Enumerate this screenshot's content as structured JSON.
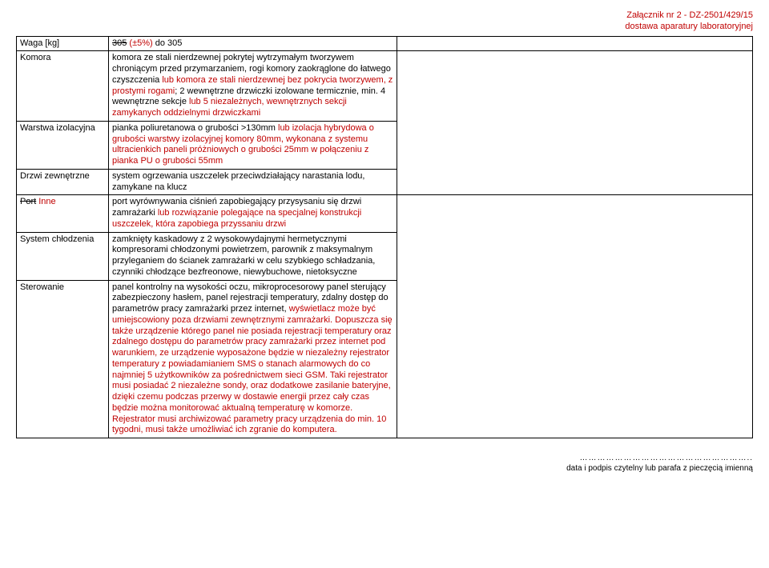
{
  "header": {
    "line1": "Załącznik nr 2 - DZ-2501/429/15",
    "line2": "dostawa aparatury laboratoryjnej"
  },
  "rows": [
    {
      "label_html": "Waga [kg]",
      "desc_html": "<span class='strike'>305</span> <span class='red'>(±5%)</span> do 305"
    },
    {
      "label_html": "Komora",
      "desc_html": "komora ze stali nierdzewnej pokrytej wytrzymałym tworzywem chroniącym przed przymarzaniem, rogi komory zaokrąglone do łatwego czyszczenia <span class='red'>lub komora ze stali nierdzewnej bez pokrycia tworzywem, z prostymi rogami</span>; 2 wewnętrzne drzwiczki izolowane termicznie, min. 4 wewnętrzne sekcje <span class='red'>lub 5 niezależnych, wewnętrznych sekcji zamykanych oddzielnymi drzwiczkami</span>"
    },
    {
      "label_html": "Warstwa izolacyjna",
      "desc_html": "pianka poliuretanowa o grubości >130mm <span class='red'>lub izolacja hybrydowa o grubości warstwy izolacyjnej komory 80mm, wykonana z systemu ultracienkich paneli próżniowych o grubości 25mm w połączeniu z pianka PU o grubości 55mm</span>"
    },
    {
      "label_html": "Drzwi zewnętrzne",
      "desc_html": "system ogrzewania uszczelek przeciwdziałający narastania lodu, zamykane na klucz"
    },
    {
      "label_html": "<span class='strike'>Port</span> <span class='red'>Inne</span>",
      "desc_html": "port wyrównywania ciśnień zapobiegający przysysaniu się drzwi zamrażarki <span class='red'>lub rozwiązanie polegające na specjalnej konstrukcji uszczelek, która zapobiega przyssaniu drzwi</span>"
    },
    {
      "label_html": "System chłodzenia",
      "desc_html": "zamknięty kaskadowy z 2 wysokowydajnymi hermetycznymi kompresorami chłodzonymi powietrzem, parownik z maksymalnym przyleganiem do ścianek zamrażarki w celu szybkiego schładzania, czynniki chłodzące bezfreonowe, niewybuchowe, nietoksyczne"
    },
    {
      "label_html": "Sterowanie",
      "desc_html": "panel kontrolny na wysokości oczu, mikroprocesorowy panel sterujący zabezpieczony hasłem, panel rejestracji temperatury, zdalny dostęp do parametrów pracy zamrażarki przez internet, <span class='red'>wyświetlacz może być umiejscowiony poza drzwiami zewnętrznymi zamrażarki. Dopuszcza się także urządzenie którego panel nie posiada rejestracji temperatury oraz zdalnego dostępu do parametrów pracy zamrażarki przez internet pod warunkiem, ze urządzenie wyposażone będzie w niezależny rejestrator temperatury z powiadamianiem SMS o stanach alarmowych do co najmniej 5 użytkowników za pośrednictwem sieci GSM. Taki rejestrator musi posiadać 2 niezależne sondy, oraz dodatkowe zasilanie bateryjne, dzięki czemu podczas przerwy w dostawie energii przez cały czas będzie można monitorować aktualną temperaturę w komorze. Rejestrator musi archiwizować parametry pracy urządzenia do min. 10 tygodni, musi także umożliwiać ich zgranie do komputera.</span>"
    }
  ],
  "group1": {
    "start": 0,
    "end": 0,
    "col3_rows": 1
  },
  "group2": {
    "start": 1,
    "end": 3,
    "col3_rows": 3
  },
  "group3": {
    "start": 4,
    "end": 6,
    "col3_rows": 3
  },
  "footer": {
    "dots": "…………………………………………………..",
    "line2": "data i podpis czytelny lub parafa z pieczęcią imienną"
  }
}
